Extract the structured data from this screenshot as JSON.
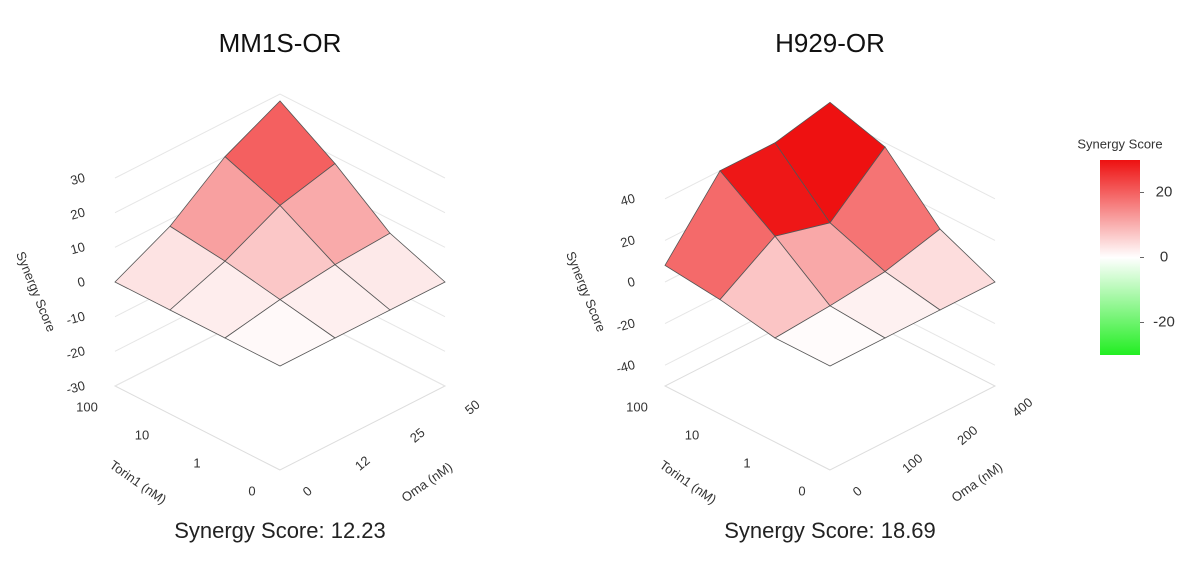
{
  "chart_data": [
    {
      "type": "surface",
      "title": "MM1S-OR",
      "subtitle": "Synergy Score: 12.23",
      "x_label": "Oma (nM)",
      "y_label": "Torin1 (nM)",
      "z_label": "Synergy Score",
      "x": [
        0,
        12,
        25,
        50
      ],
      "y": [
        0,
        1,
        10,
        100
      ],
      "z": [
        [
          0,
          0,
          0,
          0
        ],
        [
          0,
          3,
          5,
          6
        ],
        [
          0,
          6,
          14,
          18
        ],
        [
          0,
          8,
          20,
          28
        ]
      ],
      "zlim": [
        -30,
        30
      ],
      "zticks": [
        30,
        20,
        10,
        0,
        -10,
        -20,
        -30
      ]
    },
    {
      "type": "surface",
      "title": "H929-OR",
      "subtitle": "Synergy Score: 18.69",
      "x_label": "Oma (nM)",
      "y_label": "Torin1 (nM)",
      "z_label": "Synergy Score",
      "x": [
        0,
        100,
        200,
        400
      ],
      "y": [
        0,
        1,
        10,
        100
      ],
      "z": [
        [
          0,
          0,
          0,
          0
        ],
        [
          0,
          2,
          5,
          12
        ],
        [
          5,
          22,
          15,
          38
        ],
        [
          8,
          40,
          40,
          46
        ]
      ],
      "zlim": [
        -50,
        50
      ],
      "zticks": [
        40,
        20,
        0,
        -20,
        -40
      ]
    }
  ],
  "colorbar": {
    "title": "Synergy Score",
    "lim": [
      -30,
      30
    ],
    "ticks": [
      20,
      0,
      -20
    ],
    "colors": [
      "#22ee22",
      "#ffffff",
      "#ee1111"
    ]
  }
}
